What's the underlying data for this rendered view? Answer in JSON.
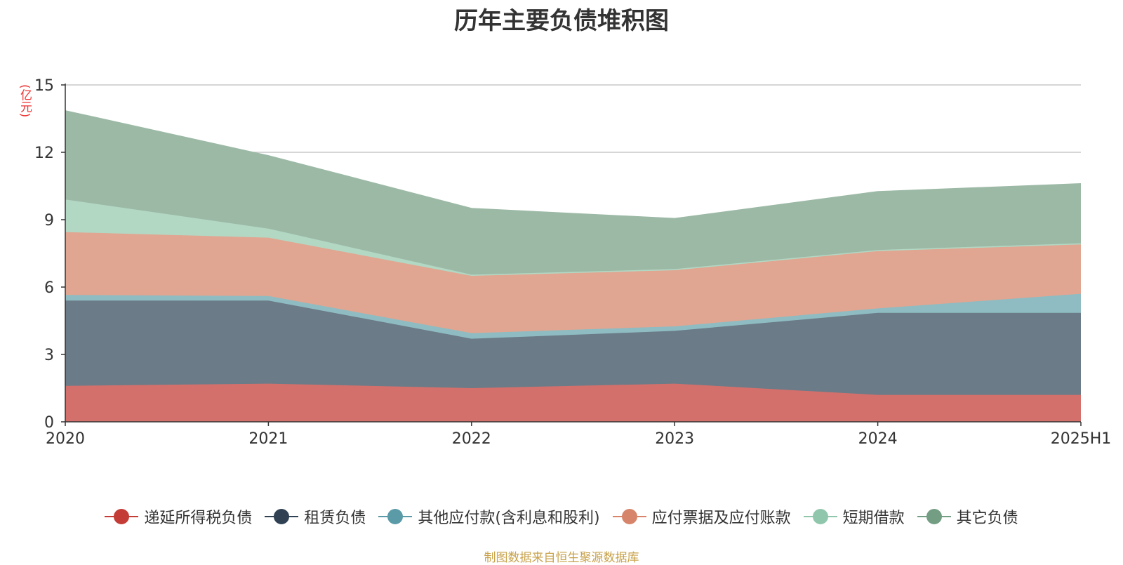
{
  "chart_data": {
    "type": "area",
    "stacked": true,
    "title": "历年主要负债堆积图",
    "unit_label": "(亿元)",
    "xlabel": "",
    "ylabel": "(亿元)",
    "ylim": [
      0,
      15
    ],
    "yticks": [
      0,
      3,
      6,
      9,
      12,
      15
    ],
    "grid": true,
    "legend_position": "bottom",
    "categories": [
      "2020",
      "2021",
      "2022",
      "2023",
      "2024",
      "2025H1"
    ],
    "series": [
      {
        "name": "递延所得税负债",
        "color": "#d4706c",
        "marker_color": "#c43c36",
        "values": [
          1.6,
          1.7,
          1.5,
          1.7,
          1.2,
          1.2
        ]
      },
      {
        "name": "租赁负债",
        "color": "#6b7b87",
        "marker_color": "#2f4153",
        "values": [
          3.8,
          3.7,
          2.2,
          2.35,
          3.65,
          3.65
        ]
      },
      {
        "name": "其他应付款(含利息和股利)",
        "color": "#8fbcc2",
        "marker_color": "#5b9ba8",
        "values": [
          0.25,
          0.2,
          0.25,
          0.2,
          0.2,
          0.85
        ]
      },
      {
        "name": "应付票据及应付账款",
        "color": "#e0a691",
        "marker_color": "#d7856a",
        "values": [
          2.8,
          2.6,
          2.55,
          2.5,
          2.55,
          2.2
        ]
      },
      {
        "name": "短期借款",
        "color": "#b2d8c4",
        "marker_color": "#90c7ac",
        "values": [
          1.45,
          0.4,
          0.05,
          0.05,
          0.05,
          0.05
        ]
      },
      {
        "name": "其它负债",
        "color": "#9cb9a6",
        "marker_color": "#739e83",
        "values": [
          3.95,
          3.25,
          2.95,
          2.25,
          2.6,
          2.65
        ]
      }
    ]
  },
  "source": "制图数据来自恒生聚源数据库"
}
